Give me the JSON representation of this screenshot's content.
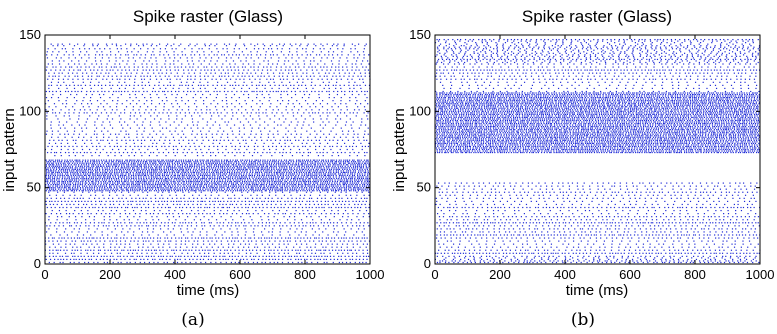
{
  "chart_data": [
    {
      "type": "scatter",
      "title": "Spike raster (Glass)",
      "xlabel": "time (ms)",
      "ylabel": "input pattern",
      "xlim": [
        0,
        1000
      ],
      "ylim": [
        0,
        150
      ],
      "xticks": [
        "0",
        "200",
        "400",
        "600",
        "800",
        "1000"
      ],
      "yticks": [
        "0",
        "50",
        "100",
        "150"
      ],
      "caption": "(a)",
      "marker_color": "#1f2bd6",
      "grid": false,
      "dense_band": [
        48,
        68
      ],
      "firing_rows": [
        1,
        3,
        5,
        7,
        9,
        11,
        13,
        15,
        17,
        19,
        21,
        23,
        25,
        27,
        29,
        31,
        33,
        35,
        37,
        39,
        41,
        43,
        45,
        47,
        48,
        49,
        50,
        51,
        52,
        53,
        54,
        55,
        56,
        57,
        58,
        59,
        60,
        61,
        62,
        63,
        64,
        65,
        66,
        67,
        68,
        71,
        73,
        75,
        77,
        79,
        81,
        83,
        85,
        87,
        89,
        91,
        93,
        95,
        97,
        99,
        101,
        103,
        105,
        107,
        109,
        111,
        113,
        115,
        117,
        119,
        121,
        123,
        125,
        127,
        129,
        131,
        133,
        135,
        137,
        139,
        141,
        143,
        144
      ],
      "seed": 7
    },
    {
      "type": "scatter",
      "title": "Spike raster (Glass)",
      "xlabel": "time (ms)",
      "ylabel": "input pattern",
      "xlim": [
        0,
        1000
      ],
      "ylim": [
        0,
        150
      ],
      "xticks": [
        "0",
        "200",
        "400",
        "600",
        "800",
        "1000"
      ],
      "yticks": [
        "0",
        "50",
        "100",
        "150"
      ],
      "caption": "(b)",
      "marker_color": "#1f2bd6",
      "grid": false,
      "dense_band": [
        72,
        112
      ],
      "firing_rows": [
        1,
        2,
        3,
        4,
        5,
        7,
        9,
        11,
        13,
        15,
        17,
        19,
        21,
        23,
        25,
        27,
        29,
        31,
        33,
        35,
        37,
        39,
        41,
        43,
        45,
        47,
        49,
        51,
        53,
        73,
        74,
        75,
        76,
        77,
        78,
        79,
        80,
        81,
        82,
        83,
        84,
        85,
        86,
        87,
        88,
        89,
        90,
        91,
        92,
        93,
        94,
        95,
        96,
        97,
        98,
        99,
        100,
        101,
        102,
        103,
        104,
        105,
        106,
        107,
        108,
        109,
        110,
        111,
        112,
        113,
        115,
        117,
        119,
        121,
        123,
        125,
        127,
        129,
        131,
        132,
        133,
        134,
        135,
        136,
        137,
        138,
        139,
        140,
        141,
        142,
        143,
        144,
        145,
        146,
        147
      ],
      "seed": 13
    }
  ]
}
